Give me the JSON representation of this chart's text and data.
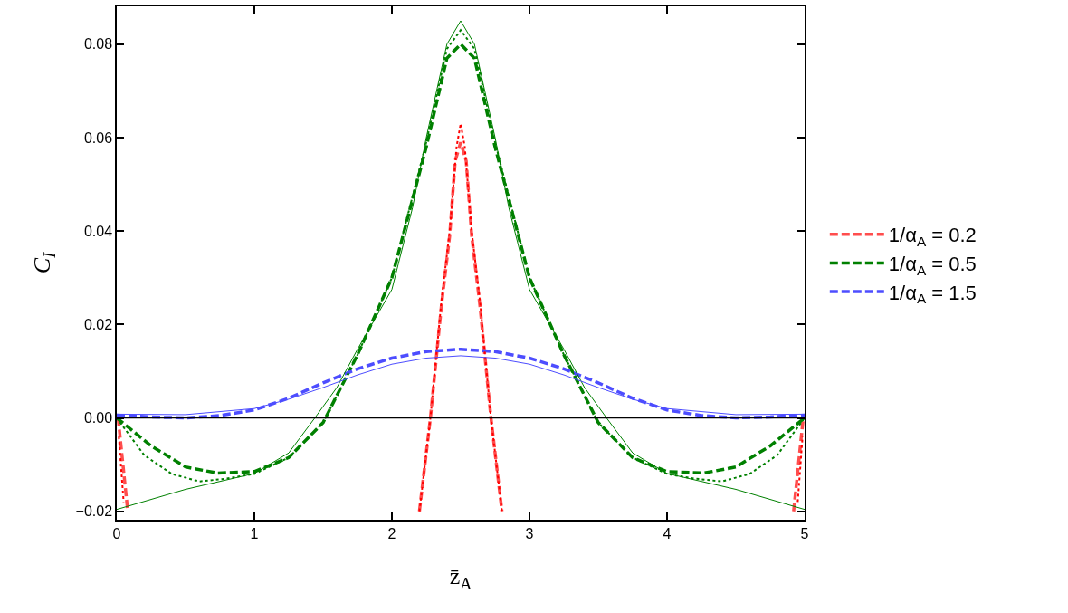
{
  "chart_data": {
    "type": "line",
    "xlabel": "z̄$_{A}$",
    "ylabel": "C$_{I}$",
    "xlim": [
      0,
      5
    ],
    "ylim": [
      -0.0218,
      0.0881
    ],
    "xticks": [
      0,
      1,
      2,
      3,
      4,
      5
    ],
    "yticks": [
      {
        "value": -0.02,
        "label": "−0.02"
      },
      {
        "value": 0,
        "label": "0.00"
      },
      {
        "value": 0.02,
        "label": "0.02"
      },
      {
        "value": 0.04,
        "label": "0.04"
      },
      {
        "value": 0.06,
        "label": "0.06"
      },
      {
        "value": 0.08,
        "label": "0.08"
      }
    ],
    "legend": "right",
    "ref_lines": [
      {
        "axis": "y",
        "value": 0,
        "color": "#000000",
        "line_style": "solid"
      }
    ],
    "series": [
      {
        "name": "1/α$_{A}$ = 0.2",
        "color": "#ff4d4d",
        "line_style": "dashed",
        "x": [
          0.01,
          0.08,
          null,
          2.2,
          2.28,
          2.36,
          2.42,
          2.46,
          2.5,
          2.54,
          2.58,
          2.64,
          2.72,
          2.8,
          null,
          4.92,
          4.99
        ],
        "values": [
          0,
          -0.02,
          null,
          -0.02,
          0,
          0.024,
          0.039,
          0.055,
          0.059,
          0.055,
          0.039,
          0.024,
          0,
          -0.02,
          null,
          -0.02,
          0
        ]
      },
      {
        "name": "1/α$_{A}$ = 0.5",
        "color": "#008000",
        "line_style": "dashed",
        "x": [
          0,
          0.25,
          0.5,
          0.73,
          1,
          1.25,
          1.5,
          1.75,
          2,
          2.25,
          2.4,
          2.5,
          2.6,
          2.75,
          3,
          3.25,
          3.5,
          3.75,
          4,
          4.27,
          4.5,
          4.75,
          5
        ],
        "values": [
          0,
          -0.006,
          -0.0105,
          -0.0118,
          -0.0115,
          -0.0085,
          -0.001,
          0.0135,
          0.03,
          0.058,
          0.077,
          0.08,
          0.077,
          0.058,
          0.03,
          0.0135,
          -0.001,
          -0.0085,
          -0.0115,
          -0.0118,
          -0.0105,
          -0.006,
          0
        ]
      },
      {
        "name": "1/α$_{A}$ = 1.5",
        "color": "#4d4dff",
        "line_style": "dashed",
        "x": [
          0,
          0.25,
          0.5,
          0.75,
          1,
          1.25,
          1.5,
          1.75,
          2,
          2.25,
          2.5,
          2.75,
          3,
          3.25,
          3.5,
          3.75,
          4,
          4.25,
          4.5,
          4.75,
          5
        ],
        "values": [
          0.0006,
          0.0002,
          0,
          0.0005,
          0.0017,
          0.0042,
          0.0075,
          0.0105,
          0.0128,
          0.0142,
          0.0147,
          0.0142,
          0.0128,
          0.0105,
          0.0075,
          0.0042,
          0.0017,
          0.0005,
          0,
          0.0002,
          0.0006
        ]
      },
      {
        "color": "#ff0000",
        "line_style": "dotted",
        "x": [
          0.015,
          0.05,
          null,
          2.2,
          2.28,
          2.36,
          2.42,
          2.47,
          2.5,
          2.53,
          2.58,
          2.64,
          2.72,
          2.8,
          null,
          4.95,
          4.985
        ],
        "values": [
          -0.004,
          -0.018,
          null,
          -0.02,
          0,
          0.025,
          0.04,
          0.058,
          0.063,
          0.058,
          0.04,
          0.025,
          0,
          -0.02,
          null,
          -0.018,
          -0.004
        ]
      },
      {
        "color": "#008000",
        "line_style": "dotted",
        "x": [
          0,
          0.2,
          0.4,
          0.6,
          0.8,
          1,
          1.25,
          1.5,
          1.75,
          2,
          2.25,
          2.4,
          2.5,
          2.6,
          2.75,
          3,
          3.25,
          3.5,
          3.75,
          4,
          4.2,
          4.4,
          4.6,
          4.8,
          5
        ],
        "values": [
          0,
          -0.008,
          -0.012,
          -0.0136,
          -0.013,
          -0.012,
          -0.0085,
          -0.001,
          0.0135,
          0.03,
          0.059,
          0.079,
          0.083,
          0.079,
          0.059,
          0.03,
          0.0135,
          -0.001,
          -0.0085,
          -0.012,
          -0.013,
          -0.0136,
          -0.012,
          -0.008,
          0
        ]
      },
      {
        "color": "#008000",
        "line_style": "solid",
        "x": [
          0,
          0.5,
          1,
          1.25,
          1.44,
          1.6,
          1.75,
          2,
          2.15,
          2.25,
          2.4,
          2.5,
          2.6,
          2.75,
          2.85,
          3,
          3.25,
          3.4,
          3.56,
          3.75,
          4,
          4.5,
          5
        ],
        "values": [
          -0.0196,
          -0.0153,
          -0.0119,
          -0.0075,
          0,
          0.0065,
          0.0147,
          0.0275,
          0.045,
          0.06,
          0.08,
          0.085,
          0.08,
          0.06,
          0.045,
          0.0275,
          0.0147,
          0.0065,
          0,
          -0.0075,
          -0.0119,
          -0.0153,
          -0.0196
        ]
      },
      {
        "color": "#4d4dff",
        "line_style": "solid",
        "x": [
          0,
          0.5,
          1,
          1.25,
          1.5,
          1.75,
          2,
          2.25,
          2.5,
          2.75,
          3,
          3.25,
          3.5,
          3.75,
          4,
          4.5,
          5
        ],
        "values": [
          0.0008,
          0.0007,
          0.002,
          0.004,
          0.0065,
          0.0092,
          0.0115,
          0.0128,
          0.0133,
          0.0128,
          0.0115,
          0.0092,
          0.0065,
          0.004,
          0.002,
          0.0007,
          0.0008
        ]
      }
    ]
  }
}
